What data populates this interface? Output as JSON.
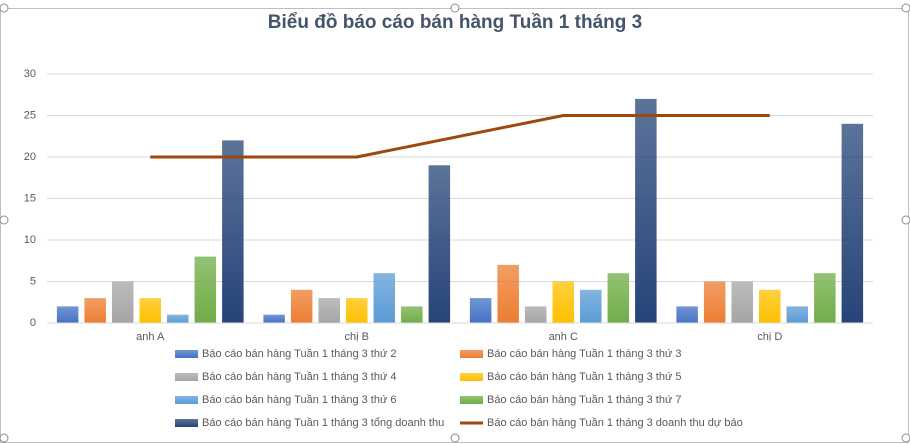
{
  "chart_data": {
    "type": "bar",
    "title": "Biểu đồ báo cáo bán hàng Tuần 1 tháng 3",
    "categories": [
      "anh A",
      "chị B",
      "anh C",
      "chị D"
    ],
    "series": [
      {
        "name": "Báo cáo bán hàng Tuần 1 tháng 3 thứ 2",
        "color": "#4472c4",
        "values": [
          2,
          1,
          3,
          2
        ]
      },
      {
        "name": "Báo cáo bán hàng Tuần 1 tháng 3 thứ 3",
        "color": "#ed7d31",
        "values": [
          3,
          4,
          7,
          5
        ]
      },
      {
        "name": "Báo cáo bán hàng Tuần 1 tháng 3 thứ 4",
        "color": "#a5a5a5",
        "values": [
          5,
          3,
          2,
          5
        ]
      },
      {
        "name": "Báo cáo bán hàng Tuần 1 tháng 3 thứ 5",
        "color": "#ffc000",
        "values": [
          3,
          3,
          5,
          4
        ]
      },
      {
        "name": "Báo cáo bán hàng Tuần 1 tháng 3 thứ 6",
        "color": "#5b9bd5",
        "values": [
          1,
          6,
          4,
          2
        ]
      },
      {
        "name": "Báo cáo bán hàng Tuần 1 tháng 3 thứ 7",
        "color": "#70ad47",
        "values": [
          8,
          2,
          6,
          6
        ]
      },
      {
        "name": "Báo cáo bán hàng Tuần 1 tháng 3 tổng doanh thu",
        "color": "#264478",
        "values": [
          22,
          19,
          27,
          24
        ]
      },
      {
        "name": "Báo cáo bán hàng Tuần 1 tháng 3 doanh thu dự báo",
        "color": "#9e480e",
        "type": "line",
        "values": [
          20,
          20,
          25,
          25
        ]
      }
    ],
    "ylim": [
      0,
      30
    ],
    "yticks": [
      0,
      5,
      10,
      15,
      20,
      25,
      30
    ],
    "grid": true
  }
}
